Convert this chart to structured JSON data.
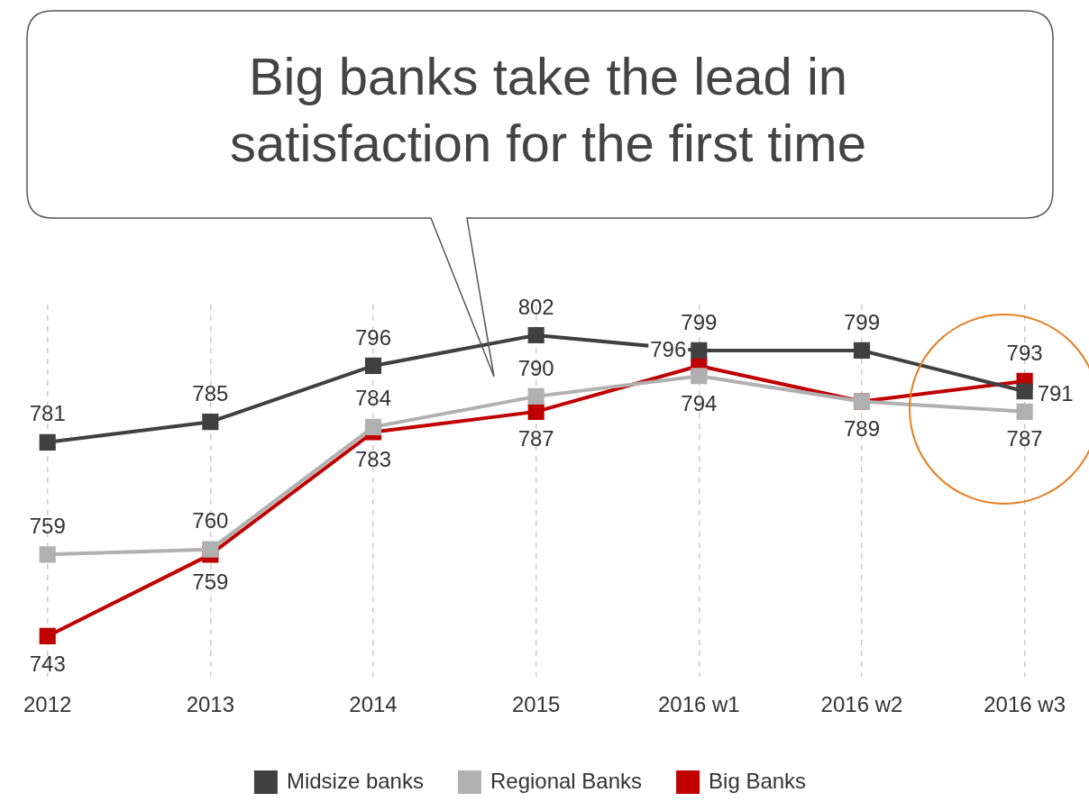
{
  "chart_data": {
    "type": "line",
    "title": "Big banks take the lead in satisfaction for the first time",
    "categories": [
      "2012",
      "2013",
      "2014",
      "2015",
      "2016 w1",
      "2016 w2",
      "2016 w3"
    ],
    "series": [
      {
        "name": "Midsize banks",
        "color": "#404040",
        "values": [
          781,
          785,
          796,
          802,
          799,
          799,
          791
        ]
      },
      {
        "name": "Regional Banks",
        "color": "#b0b0b0",
        "values": [
          759,
          760,
          784,
          790,
          794,
          789,
          787
        ],
        "value_labels": [
          "759",
          "760",
          "784",
          "790",
          "794",
          null,
          "787"
        ]
      },
      {
        "name": "Big Banks",
        "color": "#c00000",
        "values": [
          743,
          759,
          783,
          787,
          796,
          789,
          793
        ]
      }
    ],
    "ylim": [
      735,
      808
    ],
    "tick_labels": "x",
    "grid": "x",
    "legend": "bottom",
    "marker": "square",
    "line_style": "solid",
    "data_labels": true
  }
}
